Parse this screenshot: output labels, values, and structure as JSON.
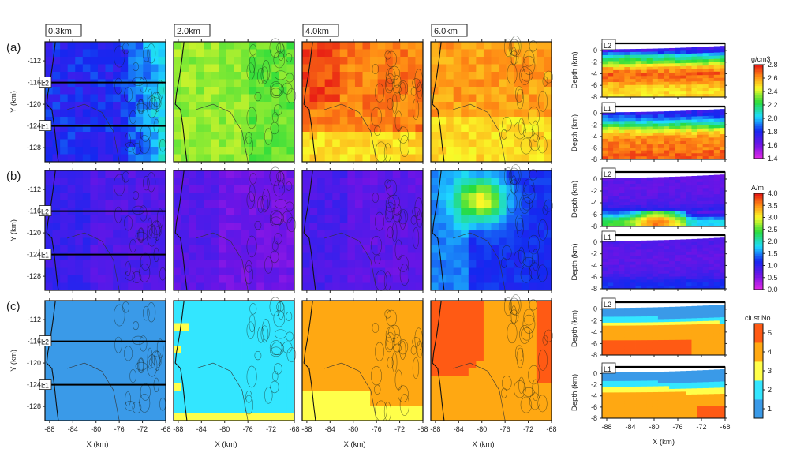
{
  "chart_data": {
    "type": "heatmap",
    "row_labels": [
      "(a)",
      "(b)",
      "(c)"
    ],
    "depth_titles": [
      "0.3km",
      "2.0km",
      "4.0km",
      "6.0km"
    ],
    "map_axes": {
      "xlabel": "X (km)",
      "ylabel": "Y (km)",
      "xlim": [
        -88.8,
        -68
      ],
      "ylim": [
        -130.6,
        -108.5
      ],
      "xticks": [
        "-88",
        "-84",
        "-80",
        "-76",
        "-72",
        "-68"
      ],
      "yticks": [
        "-112",
        "-116",
        "-120",
        "-124",
        "-128"
      ]
    },
    "profile_lines": [
      {
        "label": "L2",
        "y": -116
      },
      {
        "label": "L1",
        "y": -124
      }
    ],
    "profile_axes": {
      "xlabel": "X (km)",
      "ylabel": "Depth (km)",
      "xlim": [
        -88.8,
        -68
      ],
      "ylim": [
        -8,
        1.2
      ],
      "xticks": [
        "-88",
        "-84",
        "-80",
        "-76",
        "-72",
        "-68"
      ],
      "yticks": [
        "0",
        "-2",
        "-4",
        "-6",
        "-8"
      ]
    },
    "rows": [
      {
        "property": "density",
        "colorbar": {
          "label": "g/cm3",
          "range": [
            1.4,
            2.8
          ],
          "ticks": [
            "2.8",
            "2.6",
            "2.4",
            "2.2",
            "2.0",
            "1.8",
            "1.6",
            "1.4"
          ],
          "colormap": "rainbow"
        },
        "maps_mean_value": [
          1.8,
          2.35,
          2.65,
          2.6
        ],
        "profile_depth_values": {
          "depths": [
            0,
            -1,
            -2,
            -3,
            -4,
            -5,
            -6,
            -7,
            -8
          ],
          "L2": [
            1.7,
            2.1,
            2.3,
            2.55,
            2.7,
            2.65,
            2.55,
            2.5,
            2.5
          ],
          "L1": [
            1.75,
            1.95,
            2.2,
            2.45,
            2.6,
            2.65,
            2.65,
            2.7,
            2.7
          ]
        }
      },
      {
        "property": "magnetization",
        "colorbar": {
          "label": "A/m",
          "range": [
            0.0,
            4.0
          ],
          "ticks": [
            "4.0",
            "3.5",
            "3.0",
            "2.5",
            "2.0",
            "1.5",
            "1.0",
            "0.5",
            "0.0"
          ],
          "colormap": "rainbow"
        },
        "maps_mean_value": [
          0.8,
          0.6,
          0.7,
          1.2
        ],
        "anomaly": {
          "map": "6.0km",
          "x": -80,
          "y": -114,
          "value": 3.0
        },
        "profile_depth_values": {
          "depths": [
            0,
            -1,
            -2,
            -3,
            -4,
            -5,
            -6,
            -7,
            -8
          ],
          "L2": [
            0.7,
            0.7,
            0.7,
            0.75,
            0.8,
            1.0,
            1.6,
            2.4,
            2.4
          ],
          "L1": [
            0.8,
            0.75,
            0.7,
            0.7,
            0.75,
            0.8,
            0.9,
            1.2,
            1.2
          ]
        }
      },
      {
        "property": "cluster",
        "colorbar": {
          "label": "clust No.",
          "range": [
            0.5,
            5.5
          ],
          "ticks": [
            "5",
            "4",
            "3",
            "2",
            "1"
          ],
          "colormap": "discrete"
        },
        "maps_dominant_cluster": [
          1,
          2,
          4,
          4
        ],
        "profile_depth_values": {
          "depths": [
            0,
            -1,
            -2,
            -3,
            -4,
            -5,
            -6,
            -7,
            -8
          ],
          "L2": [
            1,
            1,
            2,
            4,
            4,
            4,
            5,
            5,
            5
          ],
          "L1": [
            1,
            1,
            2,
            3,
            4,
            4,
            4,
            4,
            4
          ]
        }
      }
    ]
  },
  "colors": {
    "cluster_1": "#3a9ae8",
    "cluster_2": "#33e6ff",
    "cluster_3": "#ffff4a",
    "cluster_4": "#ffa812",
    "cluster_5": "#ff5a14"
  }
}
